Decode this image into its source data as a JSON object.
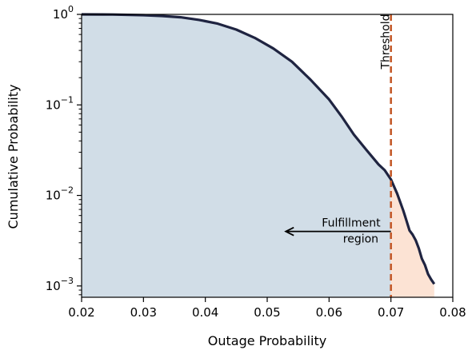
{
  "chart_data": {
    "type": "line",
    "xlabel": "Outage Probability",
    "ylabel": "Cumulative Probability",
    "xlim": [
      0.02,
      0.08
    ],
    "ylim": [
      0.00075,
      1.0
    ],
    "yscale": "log",
    "x_ticks": [
      {
        "value": 0.02,
        "label": "0.02"
      },
      {
        "value": 0.03,
        "label": "0.03"
      },
      {
        "value": 0.04,
        "label": "0.04"
      },
      {
        "value": 0.05,
        "label": "0.05"
      },
      {
        "value": 0.06,
        "label": "0.06"
      },
      {
        "value": 0.07,
        "label": "0.07"
      },
      {
        "value": 0.08,
        "label": "0.08"
      }
    ],
    "y_ticks": [
      {
        "value": 1.0,
        "base": "10",
        "exp": "0"
      },
      {
        "value": 0.1,
        "base": "10",
        "exp": "−1"
      },
      {
        "value": 0.01,
        "base": "10",
        "exp": "−2"
      },
      {
        "value": 0.001,
        "base": "10",
        "exp": "−3"
      }
    ],
    "series": [
      {
        "x": [
          0.02,
          0.025,
          0.03,
          0.033,
          0.036,
          0.039,
          0.042,
          0.045,
          0.048,
          0.051,
          0.054,
          0.057,
          0.06,
          0.062,
          0.064,
          0.066,
          0.068,
          0.069,
          0.07,
          0.071,
          0.072,
          0.0725,
          0.073,
          0.0735,
          0.074,
          0.0745,
          0.075,
          0.0755,
          0.076,
          0.0765,
          0.077
        ],
        "y": [
          1.0,
          0.995,
          0.98,
          0.96,
          0.93,
          0.87,
          0.79,
          0.68,
          0.55,
          0.42,
          0.3,
          0.19,
          0.115,
          0.075,
          0.047,
          0.032,
          0.022,
          0.019,
          0.015,
          0.0105,
          0.0068,
          0.0053,
          0.0041,
          0.0037,
          0.0032,
          0.0026,
          0.002,
          0.0017,
          0.00135,
          0.00118,
          0.00105
        ],
        "color": "#1f2441"
      }
    ],
    "fill_colors": {
      "fulfillment": "#d1dde7",
      "excess": "#fce3d4"
    },
    "threshold": {
      "x": 0.07,
      "label": "Threshold",
      "color": "#c45a2a"
    },
    "annotation": {
      "line1": "Fulfillment",
      "line2": "region",
      "arrow_from_x": 0.07,
      "arrow_to_x": 0.053,
      "y": 0.004
    }
  }
}
